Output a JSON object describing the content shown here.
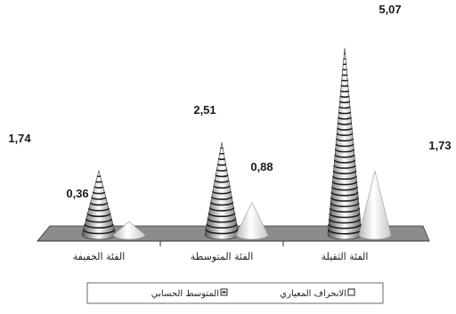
{
  "chart_data": {
    "type": "bar",
    "style": "3d-cones",
    "categories": [
      "الفئة الخفيفة",
      "الفئة المتوسطة",
      "الفئة الثقيلة"
    ],
    "series": [
      {
        "name": "المتوسط الحسابي",
        "values": [
          1.74,
          2.51,
          5.07
        ],
        "labels": [
          "1,74",
          "2,51",
          "5,07"
        ],
        "fill": "striped"
      },
      {
        "name": "الانحراف المعياري",
        "values": [
          0.36,
          0.88,
          1.73
        ],
        "labels": [
          "0,36",
          "0,88",
          "1,73"
        ],
        "fill": "plain"
      }
    ],
    "ylim": [
      0,
      5.5
    ],
    "grid": false,
    "legend_position": "bottom"
  }
}
